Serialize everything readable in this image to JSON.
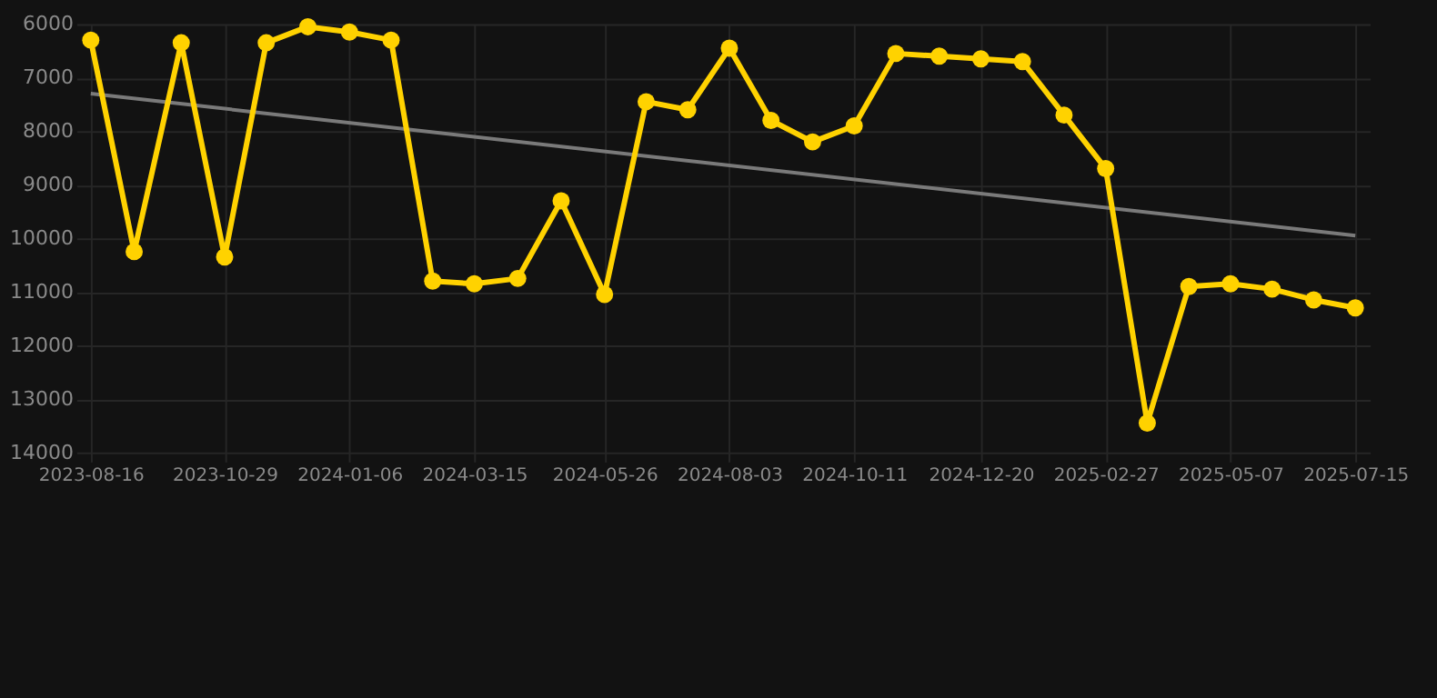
{
  "chart_data": {
    "type": "line",
    "x": [
      "2023-08-16",
      "2023-09-09",
      "2023-10-05",
      "2023-10-29",
      "2023-11-21",
      "2023-12-14",
      "2024-01-06",
      "2024-01-29",
      "2024-02-21",
      "2024-03-15",
      "2024-04-08",
      "2024-05-02",
      "2024-05-26",
      "2024-06-18",
      "2024-07-11",
      "2024-08-03",
      "2024-08-26",
      "2024-09-18",
      "2024-10-11",
      "2024-11-03",
      "2024-11-27",
      "2024-12-20",
      "2025-01-12",
      "2025-02-04",
      "2025-02-27",
      "2025-03-22",
      "2025-04-14",
      "2025-05-07",
      "2025-05-30",
      "2025-06-22",
      "2025-07-15"
    ],
    "series": [
      {
        "color": "#ffd200",
        "marker": "circle",
        "values": [
          6300,
          10250,
          6350,
          10350,
          6350,
          6050,
          6150,
          6300,
          10800,
          10850,
          10750,
          9300,
          11050,
          7450,
          7600,
          6450,
          7800,
          8200,
          7900,
          6550,
          6600,
          6650,
          6700,
          7700,
          8700,
          13450,
          10900,
          10850,
          10950,
          11150,
          11300
        ]
      },
      {
        "type": "line",
        "color": "#7a7a7a",
        "marker": "none",
        "x": [
          "2023-08-16",
          "2025-07-15"
        ],
        "values": [
          7300,
          9950
        ]
      }
    ],
    "ylim": [
      14000,
      6000
    ],
    "yticks": [
      6000,
      7000,
      8000,
      9000,
      10000,
      11000,
      12000,
      13000,
      14000
    ],
    "xlim": [
      "2023-08-08",
      "2025-07-23"
    ],
    "xticks": [
      "2023-08-16",
      "2023-10-29",
      "2024-01-06",
      "2024-03-15",
      "2024-05-26",
      "2024-08-03",
      "2024-10-11",
      "2024-12-20",
      "2025-02-27",
      "2025-05-07",
      "2025-07-15"
    ],
    "grid": true
  }
}
